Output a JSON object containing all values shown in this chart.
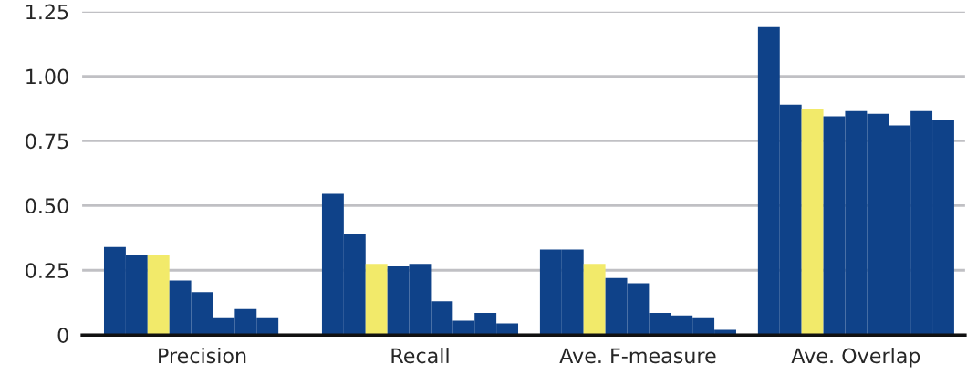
{
  "chart_data": {
    "type": "bar",
    "categories": [
      "Precision",
      "Recall",
      "Ave. F-measure",
      "Ave. Overlap"
    ],
    "series": [
      {
        "color": "#0f4289",
        "values": [
          0.34,
          0.545,
          0.33,
          1.19
        ]
      },
      {
        "color": "#0f4289",
        "values": [
          0.31,
          0.39,
          0.33,
          0.89
        ]
      },
      {
        "color": "#f2ea6a",
        "values": [
          0.31,
          0.275,
          0.275,
          0.875
        ]
      },
      {
        "color": "#0f4289",
        "values": [
          0.21,
          0.265,
          0.22,
          0.845
        ]
      },
      {
        "color": "#0f4289",
        "values": [
          0.165,
          0.275,
          0.2,
          0.865
        ]
      },
      {
        "color": "#0f4289",
        "values": [
          0.065,
          0.13,
          0.085,
          0.855
        ]
      },
      {
        "color": "#0f4289",
        "values": [
          0.1,
          0.055,
          0.075,
          0.81
        ]
      },
      {
        "color": "#0f4289",
        "values": [
          0.065,
          0.085,
          0.065,
          0.865
        ]
      },
      {
        "color": "#0f4289",
        "values": [
          null,
          0.045,
          0.02,
          0.83
        ]
      }
    ],
    "ylim": [
      0,
      1.25
    ],
    "yticks": [
      0,
      {
        "value": 0.25,
        "label": "0.25"
      },
      {
        "value": 0.5,
        "label": "0.50"
      },
      {
        "value": 0.75,
        "label": "0.75"
      },
      {
        "value": 1.0,
        "label": "1.00"
      },
      {
        "value": 1.25,
        "label": "1.25"
      }
    ],
    "grid": "y"
  }
}
